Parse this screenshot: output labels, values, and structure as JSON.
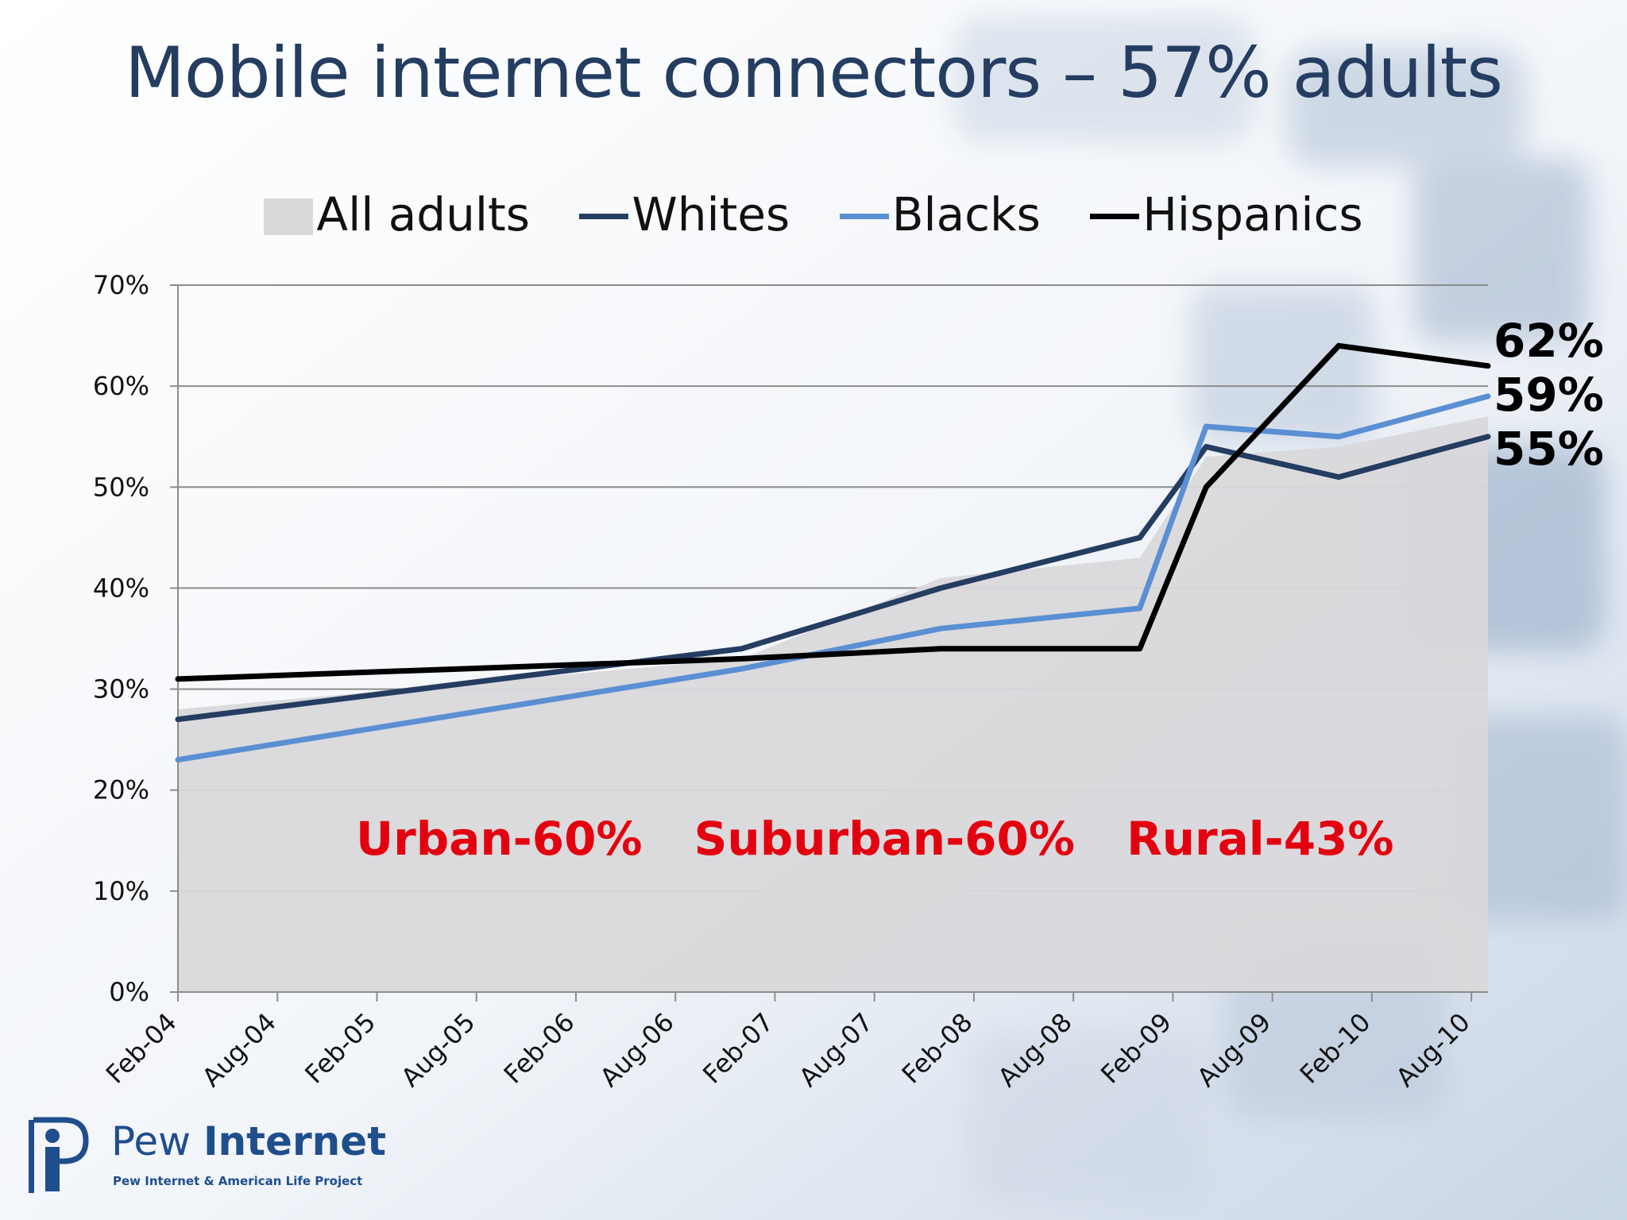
{
  "slide": {
    "title": "Mobile internet connectors – 57% adults"
  },
  "legend": {
    "items": [
      {
        "label": "All adults",
        "swatch": "area",
        "color": "#d9d8db"
      },
      {
        "label": "Whites",
        "swatch": "line",
        "color": "#243d61"
      },
      {
        "label": "Blacks",
        "swatch": "line",
        "color": "#5b8fd3"
      },
      {
        "label": "Hispanics",
        "swatch": "line",
        "color": "#000000"
      }
    ]
  },
  "end_labels": [
    "62%",
    "59%",
    "55%"
  ],
  "annotations": [
    "Urban-60%",
    "Suburban-60%",
    "Rural-43%"
  ],
  "logo": {
    "name_regular": "Pew",
    "name_bold": "Internet",
    "subtitle": "Pew Internet & American Life Project"
  },
  "chart_data": {
    "type": "line",
    "title": "",
    "xlabel": "",
    "ylabel": "",
    "x_tick_labels": [
      "Feb-04",
      "Aug-04",
      "Feb-05",
      "Aug-05",
      "Feb-06",
      "Aug-06",
      "Feb-07",
      "Aug-07",
      "Feb-08",
      "Aug-08",
      "Feb-09",
      "Aug-09",
      "Feb-10",
      "Aug-10"
    ],
    "y_tick_labels": [
      "0%",
      "10%",
      "20%",
      "30%",
      "40%",
      "50%",
      "60%",
      "70%"
    ],
    "ylim": [
      0,
      70
    ],
    "x_range": [
      "Feb-04",
      "Sep-10"
    ],
    "grid": "horizontal",
    "legend_position": "top",
    "series": [
      {
        "name": "All adults",
        "kind": "area",
        "color": "#d9d8db",
        "points": [
          {
            "x": "Feb-04",
            "y": 28
          },
          {
            "x": "Dec-06",
            "y": 33
          },
          {
            "x": "Dec-07",
            "y": 41
          },
          {
            "x": "Dec-08",
            "y": 43
          },
          {
            "x": "Apr-09",
            "y": 53
          },
          {
            "x": "Dec-09",
            "y": 54
          },
          {
            "x": "Sep-10",
            "y": 57
          }
        ]
      },
      {
        "name": "Whites",
        "kind": "line",
        "color": "#243d61",
        "points": [
          {
            "x": "Feb-04",
            "y": 27
          },
          {
            "x": "Dec-06",
            "y": 34
          },
          {
            "x": "Dec-07",
            "y": 40
          },
          {
            "x": "Dec-08",
            "y": 45
          },
          {
            "x": "Apr-09",
            "y": 54
          },
          {
            "x": "Dec-09",
            "y": 51
          },
          {
            "x": "Sep-10",
            "y": 55
          }
        ]
      },
      {
        "name": "Blacks",
        "kind": "line",
        "color": "#5b8fd3",
        "points": [
          {
            "x": "Feb-04",
            "y": 23
          },
          {
            "x": "Dec-06",
            "y": 32
          },
          {
            "x": "Dec-07",
            "y": 36
          },
          {
            "x": "Dec-08",
            "y": 38
          },
          {
            "x": "Apr-09",
            "y": 56
          },
          {
            "x": "Dec-09",
            "y": 55
          },
          {
            "x": "Sep-10",
            "y": 59
          }
        ]
      },
      {
        "name": "Hispanics",
        "kind": "line",
        "color": "#000000",
        "points": [
          {
            "x": "Feb-04",
            "y": 31
          },
          {
            "x": "Dec-06",
            "y": 33
          },
          {
            "x": "Dec-07",
            "y": 34
          },
          {
            "x": "Dec-08",
            "y": 34
          },
          {
            "x": "Apr-09",
            "y": 50
          },
          {
            "x": "Dec-09",
            "y": 64
          },
          {
            "x": "Sep-10",
            "y": 62
          }
        ]
      }
    ]
  }
}
